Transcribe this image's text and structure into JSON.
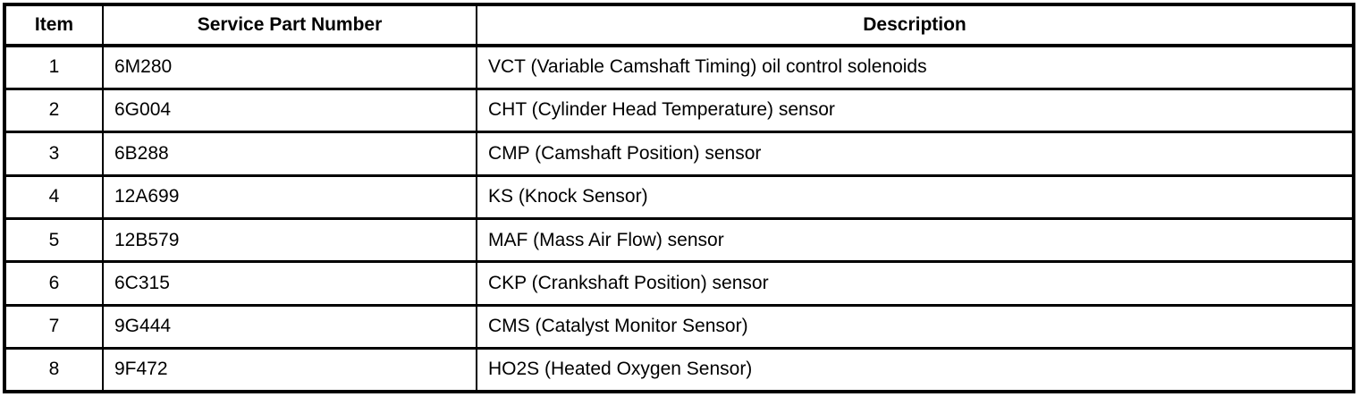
{
  "table": {
    "columns": [
      {
        "label": "Item"
      },
      {
        "label": "Service Part Number"
      },
      {
        "label": "Description"
      }
    ],
    "rows": [
      {
        "item": "1",
        "part_number": "6M280",
        "description": "VCT (Variable Camshaft Timing) oil control solenoids"
      },
      {
        "item": "2",
        "part_number": "6G004",
        "description": "CHT (Cylinder Head Temperature) sensor"
      },
      {
        "item": "3",
        "part_number": "6B288",
        "description": "CMP (Camshaft Position) sensor"
      },
      {
        "item": "4",
        "part_number": "12A699",
        "description": "KS (Knock Sensor)"
      },
      {
        "item": "5",
        "part_number": "12B579",
        "description": "MAF (Mass Air Flow) sensor"
      },
      {
        "item": "6",
        "part_number": "6C315",
        "description": "CKP (Crankshaft Position) sensor"
      },
      {
        "item": "7",
        "part_number": "9G444",
        "description": "CMS (Catalyst Monitor Sensor)"
      },
      {
        "item": "8",
        "part_number": "9F472",
        "description": "HO2S (Heated Oxygen Sensor)"
      }
    ]
  },
  "colors": {
    "border": "#000000",
    "background": "#ffffff",
    "text": "#000000"
  }
}
